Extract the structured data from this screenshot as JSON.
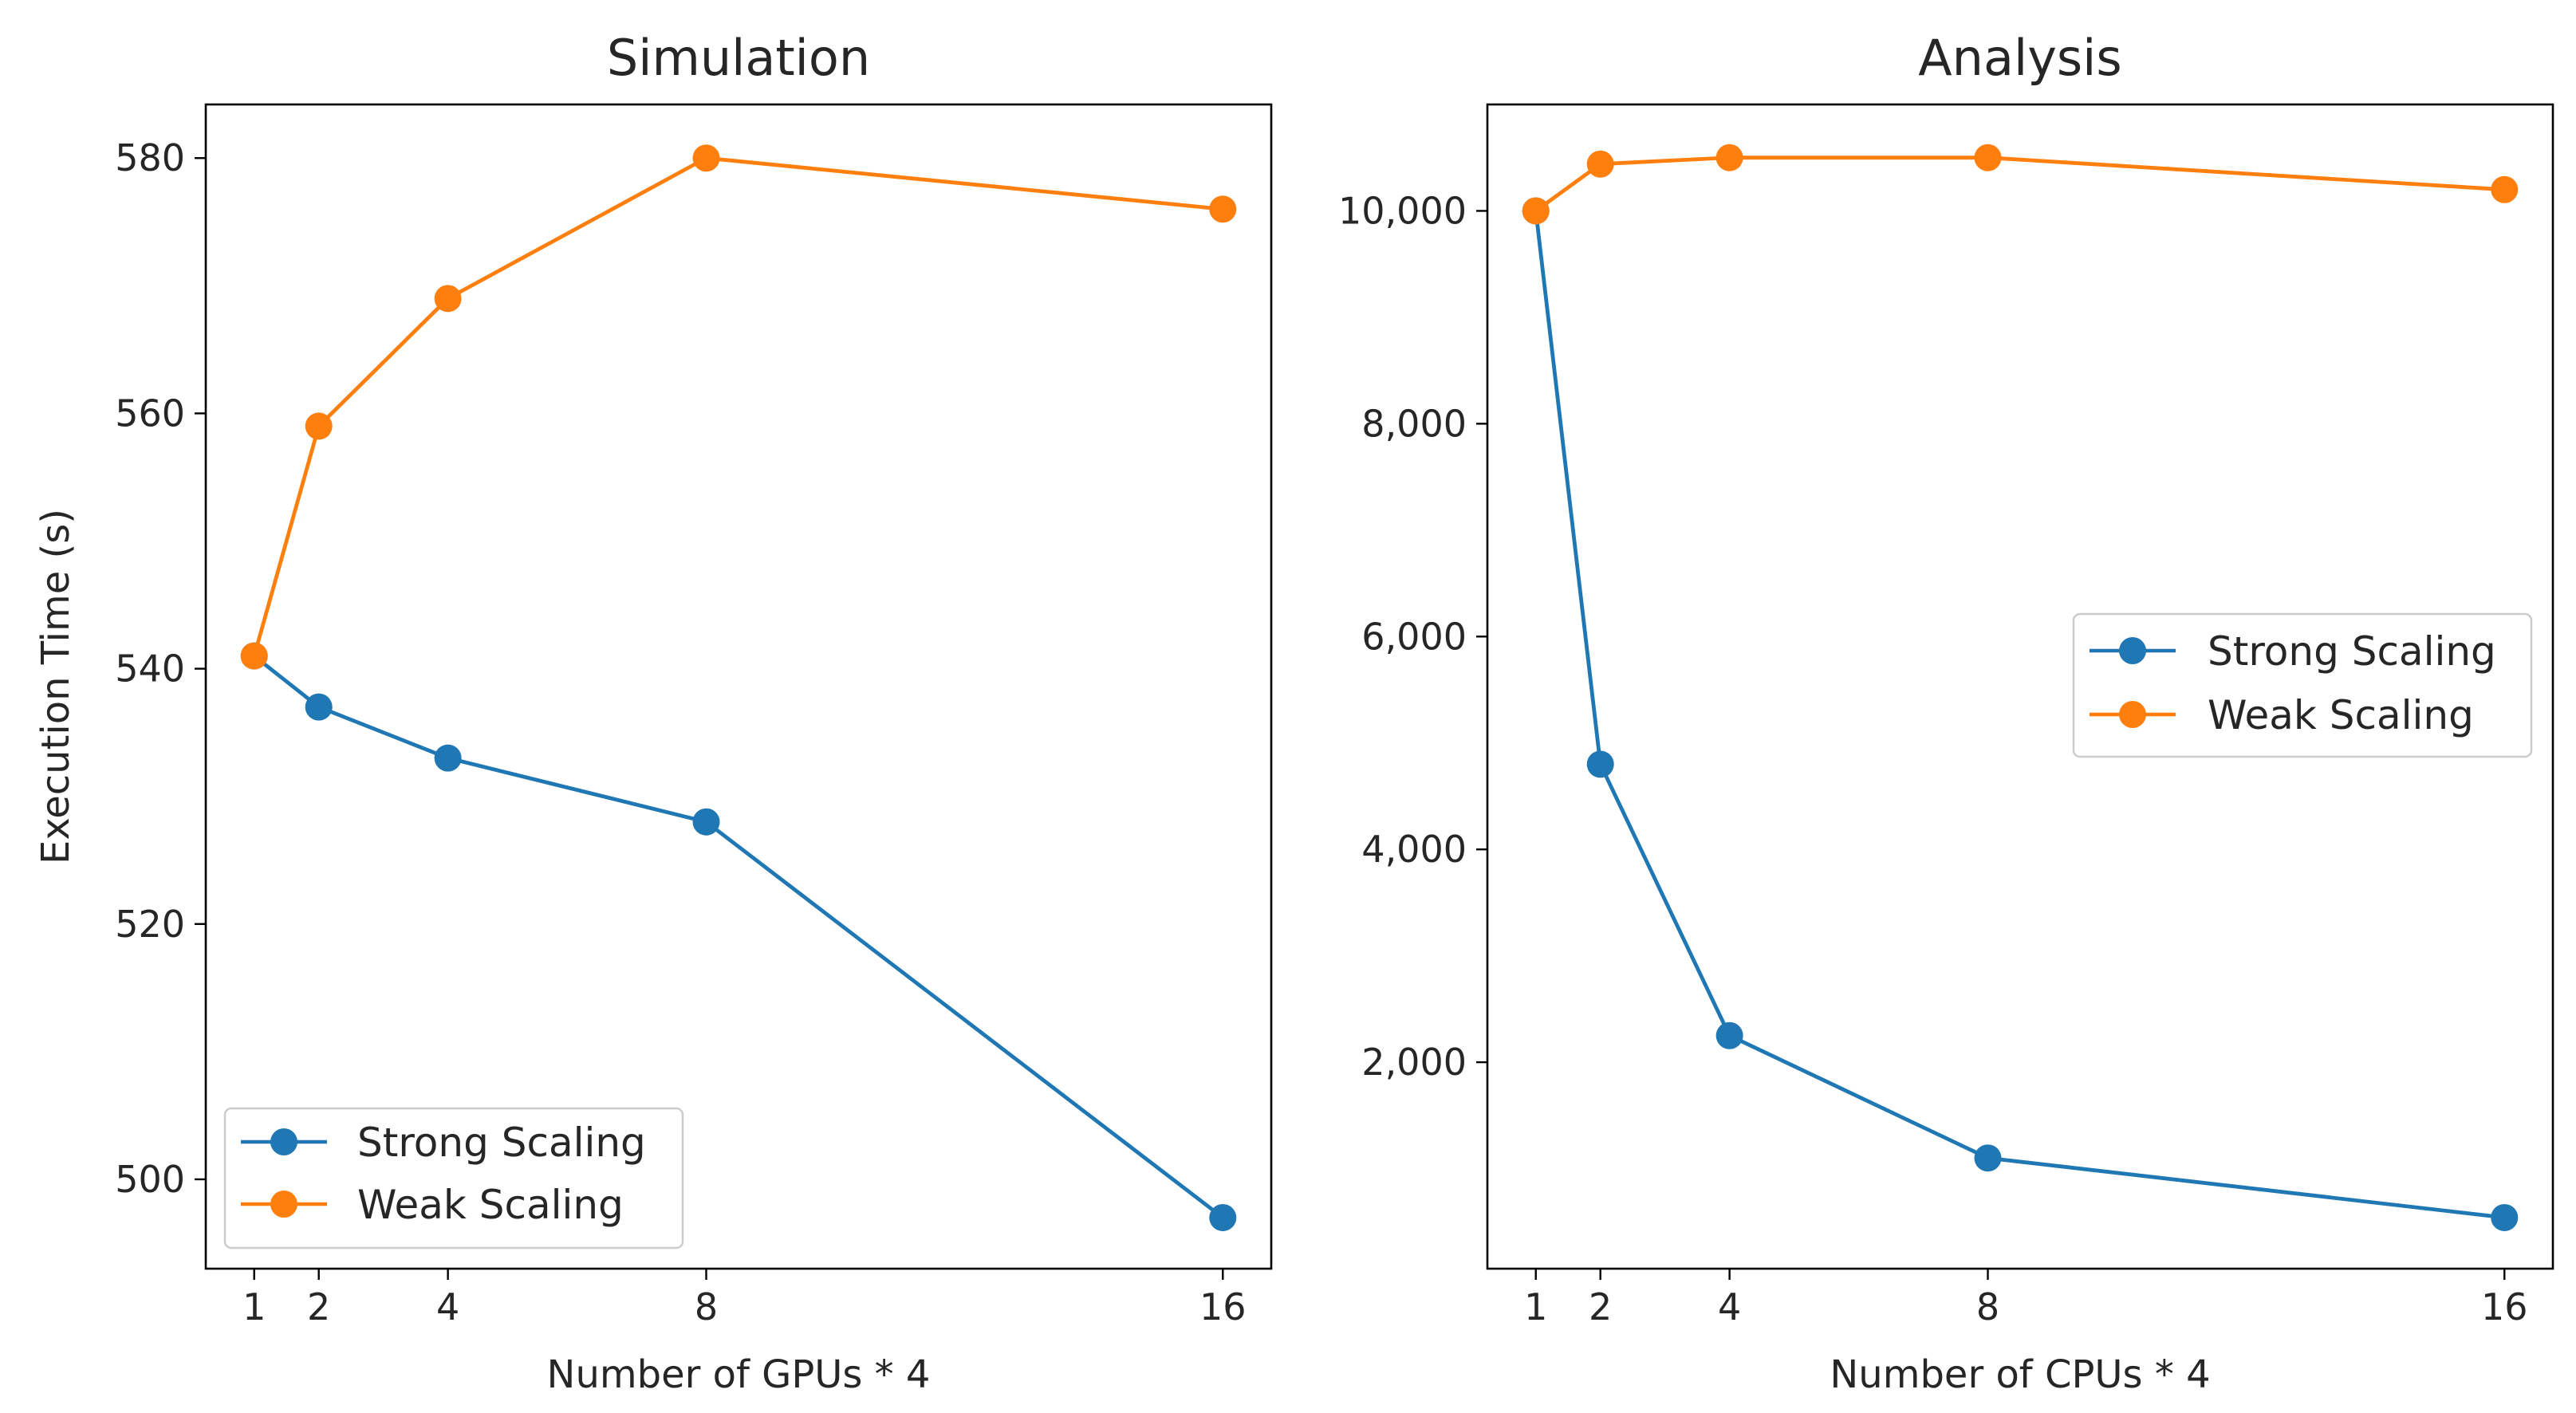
{
  "colors": {
    "strong": "#1f77b4",
    "weak": "#ff7f0e",
    "axis": "#000000",
    "text": "#262626"
  },
  "chart_data": [
    {
      "type": "line",
      "title": "Simulation",
      "xlabel": "Number of GPUs * 4",
      "ylabel": "Execution Time (s)",
      "xlim": [
        0.25,
        16.75
      ],
      "ylim": [
        493,
        584.2
      ],
      "xticks": [
        1,
        2,
        4,
        8,
        16
      ],
      "xtick_labels": [
        "1",
        "2",
        "4",
        "8",
        "16"
      ],
      "yticks": [
        500,
        520,
        540,
        560,
        580
      ],
      "ytick_labels": [
        "500",
        "520",
        "540",
        "560",
        "580"
      ],
      "legend_position": "lower-left",
      "x": [
        1,
        2,
        4,
        8,
        16
      ],
      "series": [
        {
          "name": "Strong Scaling",
          "color": "#1f77b4",
          "values": [
            541,
            537,
            533,
            528,
            497
          ]
        },
        {
          "name": "Weak Scaling",
          "color": "#ff7f0e",
          "values": [
            541,
            559,
            569,
            580,
            576
          ]
        }
      ]
    },
    {
      "type": "line",
      "title": "Analysis",
      "xlabel": "Number of CPUs * 4",
      "ylabel": "",
      "xlim": [
        0.25,
        16.75
      ],
      "ylim": [
        60,
        11000
      ],
      "xticks": [
        1,
        2,
        4,
        8,
        16
      ],
      "xtick_labels": [
        "1",
        "2",
        "4",
        "8",
        "16"
      ],
      "yticks": [
        2000,
        4000,
        6000,
        8000,
        10000
      ],
      "ytick_labels": [
        "2,000",
        "4,000",
        "6,000",
        "8,000",
        "10,000"
      ],
      "legend_position": "center-right",
      "x": [
        1,
        2,
        4,
        8,
        16
      ],
      "series": [
        {
          "name": "Strong Scaling",
          "color": "#1f77b4",
          "values": [
            10000,
            4800,
            2250,
            1100,
            540
          ]
        },
        {
          "name": "Weak Scaling",
          "color": "#ff7f0e",
          "values": [
            10000,
            10440,
            10500,
            10500,
            10200
          ]
        }
      ]
    }
  ]
}
